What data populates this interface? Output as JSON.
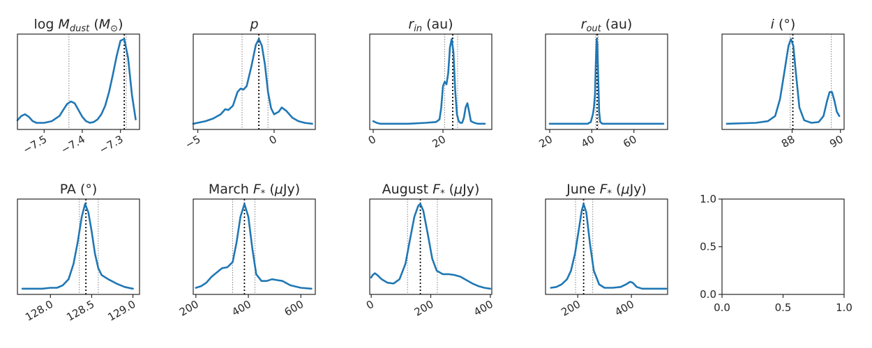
{
  "chart_data": [
    {
      "type": "line",
      "title_parts": [
        {
          "t": "log "
        },
        {
          "t": "M",
          "it": true
        },
        {
          "t": "dust",
          "it": true,
          "sub": true
        },
        {
          "t": " ("
        },
        {
          "t": "M",
          "it": true
        },
        {
          "t": "⊙",
          "sub": true
        },
        {
          "t": ")"
        }
      ],
      "xlim": [
        -7.57,
        -7.25
      ],
      "xticks": [
        -7.5,
        -7.4,
        -7.3
      ],
      "xtick_labels": [
        "−7.5",
        "−7.4",
        "−7.3"
      ],
      "tick_rotation": -30,
      "median": -7.29,
      "ci": [
        -7.435,
        -7.285
      ],
      "x": [
        -7.57,
        -7.56,
        -7.55,
        -7.54,
        -7.53,
        -7.52,
        -7.5,
        -7.48,
        -7.46,
        -7.45,
        -7.44,
        -7.43,
        -7.42,
        -7.41,
        -7.4,
        -7.39,
        -7.38,
        -7.37,
        -7.36,
        -7.35,
        -7.34,
        -7.33,
        -7.32,
        -7.31,
        -7.3,
        -7.29,
        -7.28,
        -7.27,
        -7.26
      ],
      "y": [
        0.05,
        0.1,
        0.12,
        0.09,
        0.04,
        0.02,
        0.02,
        0.04,
        0.1,
        0.17,
        0.24,
        0.27,
        0.25,
        0.17,
        0.09,
        0.04,
        0.02,
        0.03,
        0.06,
        0.12,
        0.22,
        0.38,
        0.58,
        0.8,
        0.98,
        1.0,
        0.78,
        0.35,
        0.06
      ]
    },
    {
      "type": "line",
      "title_parts": [
        {
          "t": "p",
          "it": true
        }
      ],
      "xlim": [
        -5.3,
        2.7
      ],
      "xticks": [
        -5,
        0
      ],
      "xtick_labels": [
        "−5",
        "0"
      ],
      "tick_rotation": -30,
      "median": -1.0,
      "ci": [
        -2.1,
        -0.4
      ],
      "x": [
        -5.3,
        -4.5,
        -4.0,
        -3.5,
        -3.2,
        -3.0,
        -2.7,
        -2.4,
        -2.2,
        -2.0,
        -1.8,
        -1.5,
        -1.2,
        -1.0,
        -0.8,
        -0.6,
        -0.4,
        -0.2,
        0.0,
        0.3,
        0.5,
        0.8,
        1.2,
        1.6,
        2.0,
        2.5
      ],
      "y": [
        0.01,
        0.04,
        0.07,
        0.12,
        0.18,
        0.17,
        0.22,
        0.38,
        0.42,
        0.41,
        0.45,
        0.67,
        0.93,
        1.0,
        0.92,
        0.7,
        0.38,
        0.19,
        0.12,
        0.15,
        0.2,
        0.16,
        0.08,
        0.04,
        0.02,
        0.01
      ]
    },
    {
      "type": "line",
      "title_parts": [
        {
          "t": "r",
          "it": true
        },
        {
          "t": "in",
          "it": true,
          "sub": true
        },
        {
          "t": " (au)"
        }
      ],
      "xlim": [
        -1,
        34
      ],
      "xticks": [
        0,
        20
      ],
      "xtick_labels": [
        "0",
        "20"
      ],
      "tick_rotation": -30,
      "median": 22.8,
      "ci": [
        20.5,
        24.2
      ],
      "x": [
        0,
        1,
        2,
        5,
        10,
        15,
        18,
        19,
        19.5,
        20,
        20.5,
        21,
        21.5,
        22,
        22.5,
        23,
        23.5,
        24,
        24.5,
        25,
        25.5,
        26,
        26.5,
        27,
        27.5,
        28,
        29,
        30,
        32
      ],
      "y": [
        0.04,
        0.02,
        0.01,
        0.01,
        0.01,
        0.02,
        0.03,
        0.06,
        0.2,
        0.45,
        0.5,
        0.47,
        0.6,
        0.9,
        1.0,
        0.85,
        0.4,
        0.12,
        0.04,
        0.02,
        0.02,
        0.08,
        0.2,
        0.25,
        0.15,
        0.04,
        0.02,
        0.01,
        0.01
      ]
    },
    {
      "type": "line",
      "title_parts": [
        {
          "t": "r",
          "it": true
        },
        {
          "t": "out",
          "it": true,
          "sub": true
        },
        {
          "t": " (au)"
        }
      ],
      "xlim": [
        18,
        76
      ],
      "xticks": [
        20,
        40,
        60
      ],
      "xtick_labels": [
        "20",
        "40",
        "60"
      ],
      "tick_rotation": -30,
      "median": 42.5,
      "ci": [
        41.8,
        43.1
      ],
      "x": [
        20,
        30,
        38,
        39.5,
        40.5,
        41,
        41.5,
        42,
        42.3,
        42.6,
        43,
        43.5,
        44,
        45,
        50,
        60,
        74
      ],
      "y": [
        0.01,
        0.01,
        0.01,
        0.03,
        0.12,
        0.2,
        0.35,
        0.8,
        1.0,
        0.95,
        0.6,
        0.15,
        0.03,
        0.01,
        0.01,
        0.01,
        0.01
      ]
    },
    {
      "type": "line",
      "title_parts": [
        {
          "t": "i",
          "it": true
        },
        {
          "t": " (°)"
        }
      ],
      "xlim": [
        85.1,
        90.15
      ],
      "xticks": [
        88,
        90
      ],
      "xtick_labels": [
        "88",
        "90"
      ],
      "tick_rotation": -30,
      "median": 88.03,
      "ci": [
        87.92,
        89.62
      ],
      "x": [
        85.3,
        86.5,
        87.0,
        87.3,
        87.5,
        87.7,
        87.85,
        87.95,
        88.05,
        88.15,
        88.3,
        88.5,
        88.8,
        89.1,
        89.3,
        89.45,
        89.55,
        89.65,
        89.75,
        89.85,
        89.95
      ],
      "y": [
        0.01,
        0.02,
        0.04,
        0.1,
        0.3,
        0.65,
        0.92,
        1.0,
        0.92,
        0.62,
        0.2,
        0.05,
        0.02,
        0.03,
        0.1,
        0.28,
        0.38,
        0.38,
        0.28,
        0.15,
        0.1
      ]
    },
    {
      "type": "line",
      "title_parts": [
        {
          "t": "PA  (°)"
        }
      ],
      "xlim": [
        127.6,
        129.08
      ],
      "xticks": [
        128.0,
        128.5,
        129.0
      ],
      "xtick_labels": [
        "128.0",
        "128.5",
        "129.0"
      ],
      "tick_rotation": -30,
      "median": 128.43,
      "ci": [
        128.35,
        128.58
      ],
      "x": [
        127.66,
        127.9,
        128.0,
        128.08,
        128.15,
        128.22,
        128.28,
        128.33,
        128.38,
        128.42,
        128.46,
        128.5,
        128.54,
        128.58,
        128.62,
        128.7,
        128.8,
        128.9,
        129.0
      ],
      "y": [
        0.01,
        0.01,
        0.02,
        0.02,
        0.05,
        0.12,
        0.3,
        0.55,
        0.85,
        1.0,
        0.9,
        0.68,
        0.42,
        0.25,
        0.17,
        0.12,
        0.07,
        0.03,
        0.01
      ]
    },
    {
      "type": "line",
      "title_parts": [
        {
          "t": "March "
        },
        {
          "t": "F",
          "it": true
        },
        {
          "t": "*",
          "it": true,
          "sub": true
        },
        {
          "t": " ("
        },
        {
          "t": "μ",
          "it": true
        },
        {
          "t": "Jy)"
        }
      ],
      "xlim": [
        190,
        655
      ],
      "xticks": [
        200,
        400,
        600
      ],
      "xtick_labels": [
        "200",
        "400",
        "600"
      ],
      "tick_rotation": -30,
      "median": 385,
      "ci": [
        340,
        425
      ],
      "x": [
        200,
        220,
        240,
        260,
        280,
        300,
        320,
        340,
        355,
        370,
        385,
        400,
        415,
        430,
        450,
        470,
        490,
        510,
        530,
        560,
        600,
        640
      ],
      "y": [
        0.02,
        0.04,
        0.08,
        0.15,
        0.2,
        0.25,
        0.26,
        0.32,
        0.55,
        0.85,
        1.0,
        0.85,
        0.48,
        0.18,
        0.1,
        0.1,
        0.12,
        0.11,
        0.1,
        0.05,
        0.02,
        0.01
      ]
    },
    {
      "type": "line",
      "title_parts": [
        {
          "t": "August "
        },
        {
          "t": "F",
          "it": true
        },
        {
          "t": "*",
          "it": true,
          "sub": true
        },
        {
          "t": " ("
        },
        {
          "t": "μ",
          "it": true
        },
        {
          "t": "Jy)"
        }
      ],
      "xlim": [
        -5,
        405
      ],
      "xticks": [
        0,
        200,
        400
      ],
      "xtick_labels": [
        "0",
        "200",
        "400"
      ],
      "tick_rotation": -30,
      "median": 165,
      "ci": [
        122,
        222
      ],
      "x": [
        0,
        5,
        12,
        20,
        35,
        55,
        75,
        95,
        115,
        130,
        145,
        158,
        165,
        175,
        190,
        205,
        220,
        240,
        260,
        280,
        300,
        320,
        340,
        360,
        380,
        400
      ],
      "y": [
        0.14,
        0.17,
        0.19,
        0.17,
        0.12,
        0.08,
        0.07,
        0.12,
        0.3,
        0.58,
        0.85,
        0.98,
        1.0,
        0.92,
        0.65,
        0.36,
        0.22,
        0.18,
        0.18,
        0.17,
        0.15,
        0.11,
        0.07,
        0.04,
        0.02,
        0.01
      ]
    },
    {
      "type": "line",
      "title_parts": [
        {
          "t": "June "
        },
        {
          "t": "F",
          "it": true
        },
        {
          "t": "*",
          "it": true,
          "sub": true
        },
        {
          "t": " ("
        },
        {
          "t": "μ",
          "it": true
        },
        {
          "t": "Jy)"
        }
      ],
      "xlim": [
        80,
        535
      ],
      "xticks": [
        200,
        400
      ],
      "xtick_labels": [
        "200",
        "400"
      ],
      "tick_rotation": -30,
      "median": 222,
      "ci": [
        192,
        256
      ],
      "x": [
        100,
        120,
        140,
        160,
        175,
        190,
        205,
        215,
        222,
        232,
        245,
        260,
        280,
        300,
        330,
        360,
        380,
        395,
        405,
        420,
        440,
        470,
        500,
        530
      ],
      "y": [
        0.02,
        0.03,
        0.06,
        0.12,
        0.22,
        0.42,
        0.72,
        0.92,
        1.0,
        0.9,
        0.55,
        0.22,
        0.06,
        0.02,
        0.02,
        0.03,
        0.06,
        0.09,
        0.08,
        0.03,
        0.01,
        0.01,
        0.01,
        0.01
      ]
    },
    {
      "type": "line",
      "title_parts": [],
      "xlim": [
        0,
        1
      ],
      "ylim": [
        0,
        1
      ],
      "xticks": [
        0,
        0.5,
        1.0
      ],
      "xtick_labels": [
        "0.0",
        "0.5",
        "1.0"
      ],
      "yticks": [
        0,
        0.5,
        1.0
      ],
      "ytick_labels": [
        "0.0",
        "0.5",
        "1.0"
      ],
      "tick_rotation": 0,
      "empty": true
    }
  ],
  "colors": {
    "curve": "#1f77b4",
    "median_line": "#000000",
    "ci_line": "#7f7f7f",
    "axes": "#262626"
  }
}
